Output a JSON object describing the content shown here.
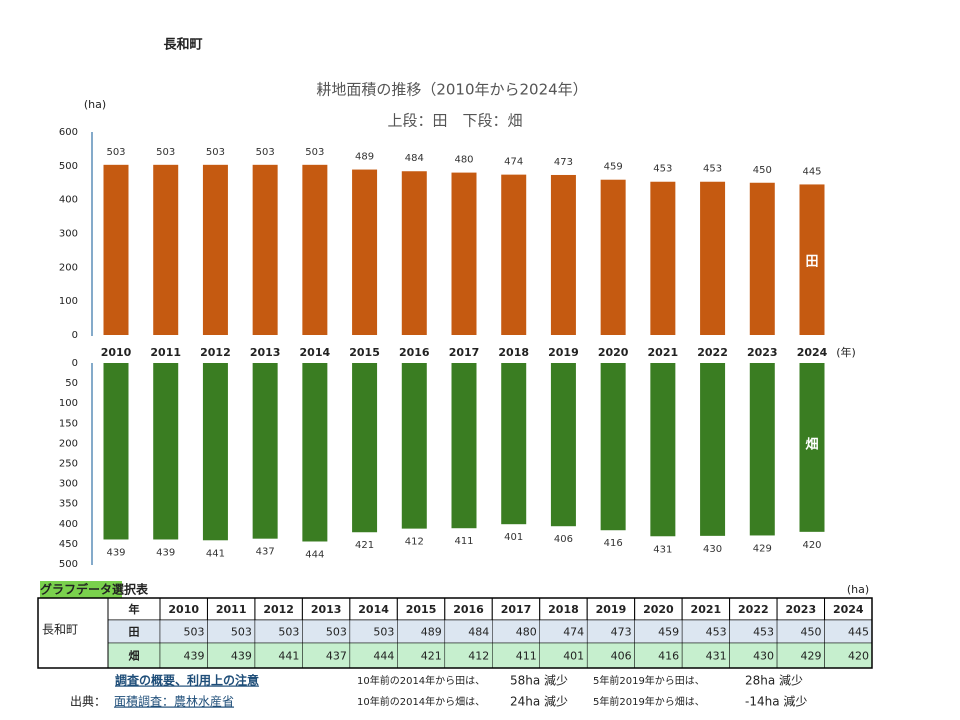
{
  "page_title": "長和町",
  "chart_data": [
    {
      "type": "bar",
      "title": "耕地面積の推移（2010年から2024年）",
      "subtitle": "上段：田　下段：畑",
      "y_label": "(ha)",
      "x_label": "(年)",
      "categories": [
        "2010",
        "2011",
        "2012",
        "2013",
        "2014",
        "2015",
        "2016",
        "2017",
        "2018",
        "2019",
        "2020",
        "2021",
        "2022",
        "2023",
        "2024"
      ],
      "series": [
        {
          "name": "田",
          "color": "#c55a11",
          "values": [
            503,
            503,
            503,
            503,
            503,
            489,
            484,
            480,
            474,
            473,
            459,
            453,
            453,
            450,
            445
          ]
        }
      ],
      "ylim": [
        0,
        600
      ],
      "yticks": [
        0,
        100,
        200,
        300,
        400,
        500,
        600
      ],
      "y_inverted": false
    },
    {
      "type": "bar",
      "series": [
        {
          "name": "畑",
          "color": "#3a7d22",
          "values": [
            439,
            439,
            441,
            437,
            444,
            421,
            412,
            411,
            401,
            406,
            416,
            431,
            430,
            429,
            420
          ]
        }
      ],
      "ylim": [
        0,
        500
      ],
      "yticks": [
        0,
        50,
        100,
        150,
        200,
        250,
        300,
        350,
        400,
        450,
        500
      ],
      "y_inverted": true
    }
  ],
  "table": {
    "title": "グラフデータ選択表",
    "unit": "(ha)",
    "row_label": "長和町",
    "header": [
      "年",
      "2010",
      "2011",
      "2012",
      "2013",
      "2014",
      "2015",
      "2016",
      "2017",
      "2018",
      "2019",
      "2020",
      "2021",
      "2022",
      "2023",
      "2024"
    ],
    "rows": [
      [
        "田",
        "503",
        "503",
        "503",
        "503",
        "503",
        "489",
        "484",
        "480",
        "474",
        "473",
        "459",
        "453",
        "453",
        "450",
        "445"
      ],
      [
        "畑",
        "439",
        "439",
        "441",
        "437",
        "444",
        "421",
        "412",
        "411",
        "401",
        "406",
        "416",
        "431",
        "430",
        "429",
        "420"
      ]
    ]
  },
  "notes": {
    "overview_link": "調査の概要、利用上の注意",
    "source_label": "出典：",
    "source_link": "面積調査：農林水産省",
    "lines": [
      [
        "10年前の2014年から田は、",
        "58ha 減少",
        "5年前2019年から田は、",
        "28ha 減少"
      ],
      [
        "10年前の2014年から畑は、",
        "24ha 減少",
        "5年前2019年から畑は、",
        "-14ha 減少"
      ]
    ]
  }
}
